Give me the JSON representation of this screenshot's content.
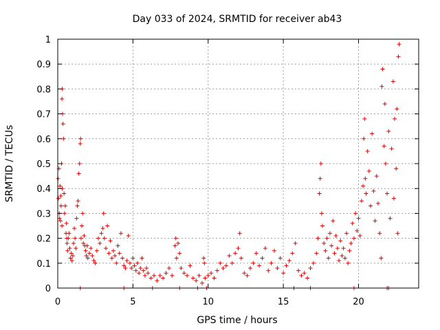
{
  "colors": {
    "marker": "#e00000",
    "axis": "#000000",
    "grid": "#a0a0a0",
    "background": "#ffffff"
  },
  "chart_data": {
    "type": "scatter",
    "title": "Day 033 of 2024, SRMTID for receiver ab43",
    "xlabel": "GPS time / hours",
    "ylabel": "SRMTID / TECUs",
    "xlim": [
      0,
      24
    ],
    "ylim": [
      0,
      1
    ],
    "x_ticks": [
      0,
      5,
      10,
      15,
      20
    ],
    "x_tick_labels": [
      "0",
      "5",
      "10",
      "15",
      "20"
    ],
    "y_ticks": [
      0,
      0.1,
      0.2,
      0.3,
      0.4,
      0.5,
      0.6,
      0.7,
      0.8,
      0.9,
      1
    ],
    "y_tick_labels": [
      "0",
      "0.1",
      "0.2",
      "0.3",
      "0.4",
      "0.5",
      "0.6",
      "0.7",
      "0.8",
      "0.9",
      "1"
    ],
    "grid": true,
    "marker": "+",
    "series": [
      {
        "name": "SRMTID",
        "points": [
          [
            0.02,
            0.44
          ],
          [
            0.05,
            0.36
          ],
          [
            0.08,
            0.48
          ],
          [
            0.1,
            0.3
          ],
          [
            0.12,
            0.28
          ],
          [
            0.15,
            0.41
          ],
          [
            0.18,
            0.27
          ],
          [
            0.2,
            0.37
          ],
          [
            0.22,
            0.33
          ],
          [
            0.25,
            0.5
          ],
          [
            0.28,
            0.25
          ],
          [
            0.3,
            0.4
          ],
          [
            0.32,
            0.7
          ],
          [
            0.28,
            0.76
          ],
          [
            0.3,
            0.8
          ],
          [
            0.35,
            0.66
          ],
          [
            0.38,
            0.6
          ],
          [
            0.42,
            0.38
          ],
          [
            0.45,
            0.3
          ],
          [
            0.5,
            0.33
          ],
          [
            0.55,
            0.22
          ],
          [
            0.58,
            0.26
          ],
          [
            0.6,
            0.2
          ],
          [
            0.62,
            0.18
          ],
          [
            0.65,
            0.15
          ],
          [
            0.7,
            0.2
          ],
          [
            0.75,
            0.22
          ],
          [
            0.8,
            0.16
          ],
          [
            0.85,
            0.12
          ],
          [
            0.9,
            0.14
          ],
          [
            0.95,
            0.11
          ],
          [
            1.0,
            0.13
          ],
          [
            1.05,
            0.18
          ],
          [
            1.1,
            0.24
          ],
          [
            1.15,
            0.2
          ],
          [
            1.2,
            0.16
          ],
          [
            1.25,
            0.28
          ],
          [
            1.3,
            0.33
          ],
          [
            1.35,
            0.35
          ],
          [
            1.4,
            0.46
          ],
          [
            1.45,
            0.5
          ],
          [
            1.5,
            0.58
          ],
          [
            1.52,
            0.6
          ],
          [
            1.55,
            0.2
          ],
          [
            1.6,
            0.25
          ],
          [
            1.65,
            0.3
          ],
          [
            1.7,
            0.18
          ],
          [
            1.75,
            0.21
          ],
          [
            1.8,
            0.17
          ],
          [
            1.85,
            0.15
          ],
          [
            1.9,
            0.13
          ],
          [
            1.95,
            0.17
          ],
          [
            2.0,
            0.12
          ],
          [
            2.1,
            0.14
          ],
          [
            2.2,
            0.16
          ],
          [
            2.3,
            0.13
          ],
          [
            2.4,
            0.11
          ],
          [
            2.5,
            0.1
          ],
          [
            2.6,
            0.15
          ],
          [
            2.7,
            0.2
          ],
          [
            2.8,
            0.18
          ],
          [
            2.9,
            0.22
          ],
          [
            3.0,
            0.24
          ],
          [
            3.05,
            0.3
          ],
          [
            3.1,
            0.2
          ],
          [
            3.2,
            0.16
          ],
          [
            3.3,
            0.25
          ],
          [
            3.4,
            0.14
          ],
          [
            3.5,
            0.19
          ],
          [
            3.6,
            0.12
          ],
          [
            3.7,
            0.15
          ],
          [
            3.8,
            0.13
          ],
          [
            3.9,
            0.1
          ],
          [
            4.0,
            0.17
          ],
          [
            4.1,
            0.14
          ],
          [
            4.2,
            0.22
          ],
          [
            4.3,
            0.12
          ],
          [
            4.4,
            0.09
          ],
          [
            4.5,
            0.08
          ],
          [
            4.6,
            0.11
          ],
          [
            4.7,
            0.21
          ],
          [
            4.8,
            0.1
          ],
          [
            4.9,
            0.08
          ],
          [
            5.0,
            0.12
          ],
          [
            5.1,
            0.09
          ],
          [
            5.2,
            0.07
          ],
          [
            5.3,
            0.1
          ],
          [
            5.4,
            0.06
          ],
          [
            5.5,
            0.08
          ],
          [
            5.6,
            0.12
          ],
          [
            5.7,
            0.07
          ],
          [
            5.8,
            0.05
          ],
          [
            5.9,
            0.08
          ],
          [
            6.0,
            0.06
          ],
          [
            6.2,
            0.04
          ],
          [
            6.4,
            0.05
          ],
          [
            6.6,
            0.03
          ],
          [
            6.8,
            0.05
          ],
          [
            7.0,
            0.04
          ],
          [
            7.2,
            0.06
          ],
          [
            7.4,
            0.08
          ],
          [
            7.6,
            0.05
          ],
          [
            7.8,
            0.17
          ],
          [
            7.85,
            0.2
          ],
          [
            7.9,
            0.12
          ],
          [
            8.0,
            0.18
          ],
          [
            8.1,
            0.14
          ],
          [
            8.2,
            0.08
          ],
          [
            8.4,
            0.06
          ],
          [
            8.6,
            0.05
          ],
          [
            8.8,
            0.09
          ],
          [
            9.0,
            0.04
          ],
          [
            9.2,
            0.03
          ],
          [
            9.4,
            0.05
          ],
          [
            9.6,
            0.02
          ],
          [
            9.7,
            0.12
          ],
          [
            9.75,
            0.1
          ],
          [
            9.8,
            0.04
          ],
          [
            10.0,
            0.05
          ],
          [
            10.2,
            0.06
          ],
          [
            10.4,
            0.04
          ],
          [
            10.6,
            0.07
          ],
          [
            10.8,
            0.1
          ],
          [
            11.0,
            0.08
          ],
          [
            11.2,
            0.09
          ],
          [
            11.4,
            0.13
          ],
          [
            11.6,
            0.1
          ],
          [
            11.8,
            0.14
          ],
          [
            12.0,
            0.16
          ],
          [
            12.1,
            0.22
          ],
          [
            12.2,
            0.12
          ],
          [
            12.4,
            0.06
          ],
          [
            12.6,
            0.05
          ],
          [
            12.8,
            0.08
          ],
          [
            13.0,
            0.1
          ],
          [
            13.2,
            0.14
          ],
          [
            13.4,
            0.09
          ],
          [
            13.6,
            0.12
          ],
          [
            13.8,
            0.16
          ],
          [
            14.0,
            0.07
          ],
          [
            14.2,
            0.1
          ],
          [
            14.4,
            0.15
          ],
          [
            14.6,
            0.08
          ],
          [
            14.8,
            0.12
          ],
          [
            15.0,
            0.06
          ],
          [
            15.2,
            0.09
          ],
          [
            15.4,
            0.11
          ],
          [
            15.6,
            0.14
          ],
          [
            15.8,
            0.18
          ],
          [
            16.0,
            0.07
          ],
          [
            16.2,
            0.05
          ],
          [
            16.4,
            0.06
          ],
          [
            16.6,
            0.04
          ],
          [
            16.8,
            0.08
          ],
          [
            17.0,
            0.1
          ],
          [
            17.2,
            0.14
          ],
          [
            17.3,
            0.2
          ],
          [
            17.4,
            0.38
          ],
          [
            17.45,
            0.44
          ],
          [
            17.5,
            0.5
          ],
          [
            17.55,
            0.3
          ],
          [
            17.6,
            0.25
          ],
          [
            17.7,
            0.18
          ],
          [
            17.8,
            0.15
          ],
          [
            17.9,
            0.2
          ],
          [
            18.0,
            0.12
          ],
          [
            18.1,
            0.22
          ],
          [
            18.2,
            0.17
          ],
          [
            18.3,
            0.27
          ],
          [
            18.4,
            0.14
          ],
          [
            18.5,
            0.21
          ],
          [
            18.6,
            0.16
          ],
          [
            18.7,
            0.11
          ],
          [
            18.8,
            0.19
          ],
          [
            18.9,
            0.13
          ],
          [
            19.0,
            0.16
          ],
          [
            19.1,
            0.12
          ],
          [
            19.2,
            0.22
          ],
          [
            19.3,
            0.1
          ],
          [
            19.4,
            0.15
          ],
          [
            19.5,
            0.18
          ],
          [
            19.6,
            0.26
          ],
          [
            19.7,
            0.2
          ],
          [
            19.8,
            0.3
          ],
          [
            19.9,
            0.23
          ],
          [
            20.0,
            0.28
          ],
          [
            20.1,
            0.21
          ],
          [
            20.2,
            0.35
          ],
          [
            20.3,
            0.41
          ],
          [
            20.35,
            0.6
          ],
          [
            20.4,
            0.68
          ],
          [
            20.45,
            0.44
          ],
          [
            20.5,
            0.38
          ],
          [
            20.6,
            0.55
          ],
          [
            20.7,
            0.47
          ],
          [
            20.8,
            0.33
          ],
          [
            20.9,
            0.62
          ],
          [
            21.0,
            0.39
          ],
          [
            21.1,
            0.27
          ],
          [
            21.2,
            0.45
          ],
          [
            21.3,
            0.34
          ],
          [
            21.4,
            0.22
          ],
          [
            21.5,
            0.12
          ],
          [
            21.55,
            0.81
          ],
          [
            21.6,
            0.88
          ],
          [
            21.7,
            0.57
          ],
          [
            21.75,
            0.74
          ],
          [
            21.8,
            0.5
          ],
          [
            21.9,
            0.38
          ],
          [
            22.0,
            0.63
          ],
          [
            22.1,
            0.28
          ],
          [
            22.2,
            0.56
          ],
          [
            22.3,
            0.83
          ],
          [
            22.35,
            0.36
          ],
          [
            22.4,
            0.68
          ],
          [
            22.5,
            0.48
          ],
          [
            22.55,
            0.72
          ],
          [
            22.6,
            0.22
          ],
          [
            22.65,
            0.93
          ],
          [
            22.7,
            0.98
          ]
        ]
      }
    ],
    "zero_points_x": [
      1.5,
      4.4,
      6.3,
      8.1,
      9.3,
      9.9,
      15.7,
      16.8,
      19.7,
      21.9,
      22.0
    ]
  }
}
